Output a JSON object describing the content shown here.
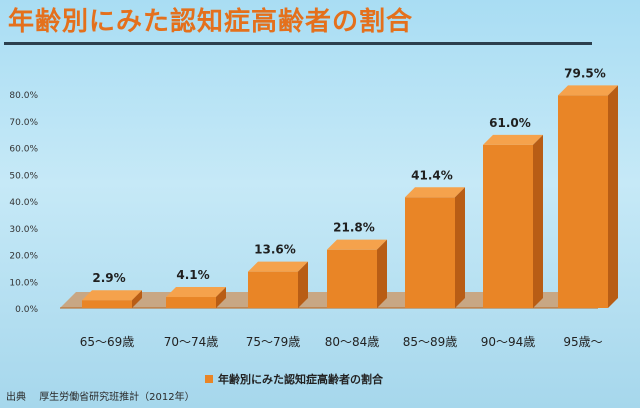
{
  "title": "年齢別にみた認知症高齢者の割合",
  "source": {
    "label": "出典",
    "text": "厚生労働省研究班推計（2012年）"
  },
  "colors": {
    "title": "#e4701c",
    "bar_front": "#e98526",
    "bar_top": "#f5a24c",
    "bar_side": "#b85d15",
    "floor": "#d7782a"
  },
  "chart_data": {
    "type": "bar",
    "categories": [
      "65〜69歳",
      "70〜74歳",
      "75〜79歳",
      "80〜84歳",
      "85〜89歳",
      "90〜94歳",
      "95歳〜"
    ],
    "series": [
      {
        "name": "年齢別にみた認知症高齢者の割合",
        "values": [
          2.9,
          4.1,
          13.6,
          21.8,
          41.4,
          61.0,
          79.5
        ],
        "value_labels": [
          "2.9%",
          "4.1%",
          "13.6%",
          "21.8%",
          "41.4%",
          "61.0%",
          "79.5%"
        ]
      }
    ],
    "yticks": [
      "0.0%",
      "10.0%",
      "20.0%",
      "30.0%",
      "40.0%",
      "50.0%",
      "60.0%",
      "70.0%",
      "80.0%"
    ],
    "ylim": [
      0,
      80
    ],
    "legend_position": "bottom",
    "grid": false,
    "style": "3d-bar"
  }
}
